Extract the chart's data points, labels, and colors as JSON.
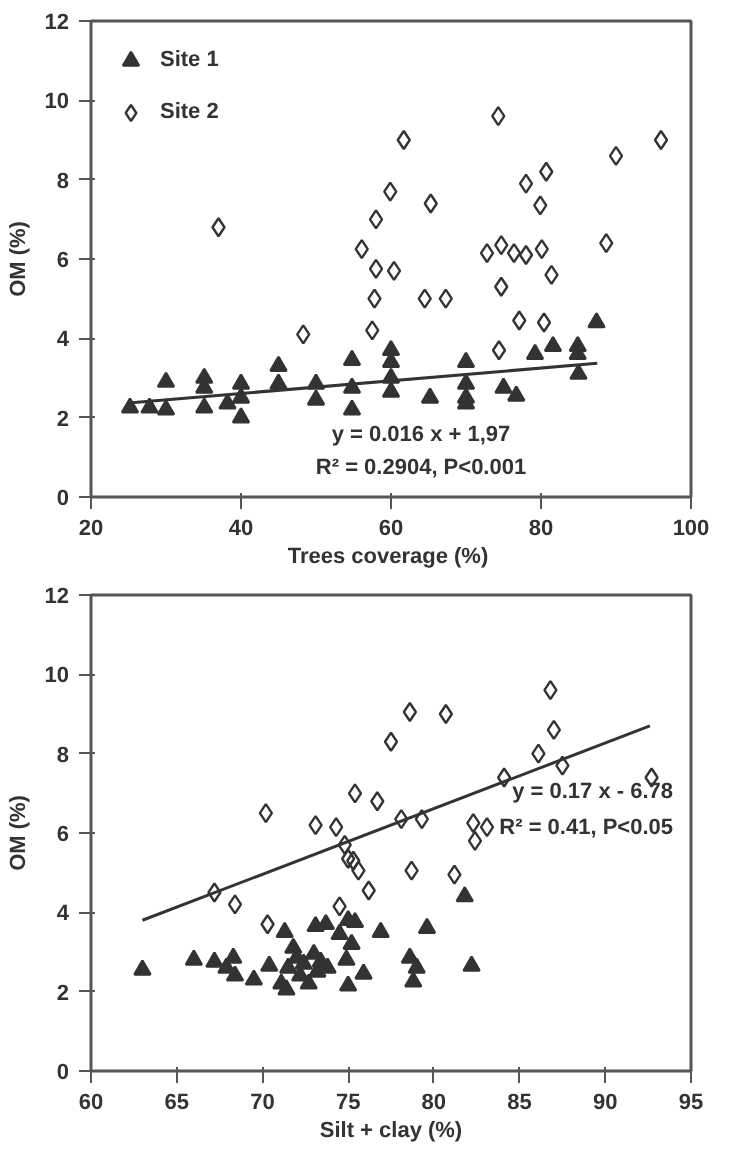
{
  "chart_data": [
    {
      "type": "scatter",
      "xlabel": "Trees coverage  (%)",
      "ylabel": "OM (%)",
      "xlim": [
        20,
        100
      ],
      "ylim": [
        0,
        12
      ],
      "xticks": [
        20,
        40,
        60,
        80,
        100
      ],
      "yticks": [
        0,
        2,
        4,
        6,
        8,
        10,
        12
      ],
      "grid": false,
      "legend": "top left",
      "annotations": [
        "y = 0.016 x + 1,97",
        "R² = 0.2904, P<0.001"
      ],
      "series": [
        {
          "name": "Site 1",
          "color": "#333333",
          "marker": "triangle",
          "x": [
            25.2,
            27.8,
            30,
            30,
            35.1,
            35.1,
            35.1,
            38.2,
            40,
            40,
            40,
            45,
            45,
            50,
            50,
            54.8,
            54.8,
            54.8,
            60,
            60,
            60,
            60,
            65.2,
            70,
            70,
            70,
            70,
            75,
            76.7,
            79.2,
            81.6,
            84.9,
            84.9,
            85,
            87.4
          ],
          "values": [
            2.25,
            2.25,
            2.9,
            2.2,
            3.0,
            2.75,
            2.25,
            2.35,
            2.85,
            2.5,
            2.0,
            3.3,
            2.85,
            2.85,
            2.45,
            3.45,
            2.75,
            2.2,
            3.7,
            3.4,
            3.0,
            2.65,
            2.5,
            3.4,
            2.85,
            2.5,
            2.35,
            2.75,
            2.55,
            3.6,
            3.8,
            3.8,
            3.6,
            3.1,
            4.4
          ]
        },
        {
          "name": "Site 2",
          "color": "#333333",
          "marker": "diamond",
          "x": [
            37,
            61.7,
            74.3,
            96,
            90,
            80.7,
            78,
            59.9,
            65.3,
            79.9,
            58,
            56.1,
            58,
            60.4,
            72.8,
            74.7,
            76.4,
            78,
            80.1,
            88.7,
            81.4,
            74.7,
            57.8,
            64.5,
            67.3,
            48.3,
            57.5,
            77.1,
            80.4,
            74.4
          ],
          "values": [
            6.8,
            9.0,
            9.6,
            9.0,
            8.6,
            8.2,
            7.9,
            7.7,
            7.4,
            7.35,
            7.0,
            6.25,
            5.75,
            5.7,
            6.15,
            6.35,
            6.15,
            6.1,
            6.25,
            6.4,
            5.6,
            5.3,
            5.0,
            5.0,
            5.0,
            4.1,
            4.2,
            4.45,
            4.4,
            3.7
          ]
        },
        {
          "type": "line",
          "color": "#333333",
          "x": [
            25,
            87.5
          ],
          "values": [
            2.37,
            3.37
          ]
        }
      ]
    },
    {
      "type": "scatter",
      "xlabel": "Silt + clay (%)",
      "ylabel": "OM (%)",
      "xlim": [
        60,
        95
      ],
      "ylim": [
        0,
        12
      ],
      "xticks": [
        60,
        65,
        70,
        75,
        80,
        85,
        90,
        95
      ],
      "yticks": [
        0,
        2,
        4,
        6,
        8,
        10,
        12
      ],
      "grid": false,
      "legend": false,
      "annotations": [
        "y = 0.17 x - 6.78",
        "R² = 0.41, P<0.05"
      ],
      "series": [
        {
          "color": "#333333",
          "marker": "triangle",
          "x": [
            63,
            66,
            67.2,
            67.9,
            68.3,
            68.4,
            69.5,
            70.4,
            71.1,
            71.3,
            71.4,
            71.5,
            71.8,
            72,
            72.2,
            72.4,
            72.7,
            73,
            73.2,
            73.4,
            73.1,
            73.7,
            73.8,
            74.5,
            74.9,
            75,
            75,
            75.4,
            75.2,
            75.9,
            76.9,
            78.6,
            78.8,
            79,
            79.6,
            81.8,
            82.2
          ],
          "values": [
            2.55,
            2.8,
            2.75,
            2.6,
            2.85,
            2.4,
            2.3,
            2.65,
            2.2,
            3.5,
            2.05,
            2.6,
            3.1,
            2.85,
            2.4,
            2.7,
            2.2,
            2.95,
            2.5,
            2.75,
            3.65,
            3.7,
            2.6,
            3.45,
            2.8,
            2.15,
            3.8,
            3.75,
            3.2,
            2.45,
            3.5,
            2.85,
            2.25,
            2.6,
            3.6,
            4.4,
            2.65
          ]
        },
        {
          "color": "#333333",
          "marker": "diamond",
          "x": [
            70.2,
            73.1,
            74.3,
            74.8,
            75.4,
            76.7,
            77.5,
            78.6,
            80.7,
            78.1,
            79.3,
            82.3,
            83.1,
            82.4,
            84.1,
            86.1,
            86.8,
            87,
            87.5,
            92.7,
            75,
            75.3,
            75.6,
            76.2,
            68.4,
            70.3,
            74.5,
            78.7,
            81.2,
            67.2
          ],
          "values": [
            6.5,
            6.2,
            6.15,
            5.7,
            7.0,
            6.8,
            8.3,
            9.05,
            9.0,
            6.35,
            6.35,
            6.25,
            6.15,
            5.8,
            7.4,
            8.0,
            9.6,
            8.6,
            7.7,
            7.4,
            5.35,
            5.3,
            5.05,
            4.55,
            4.2,
            3.7,
            4.15,
            5.05,
            4.95,
            4.5
          ]
        },
        {
          "type": "line",
          "color": "#333333",
          "x": [
            63,
            92.6
          ],
          "values": [
            3.8,
            8.7
          ]
        }
      ]
    }
  ]
}
